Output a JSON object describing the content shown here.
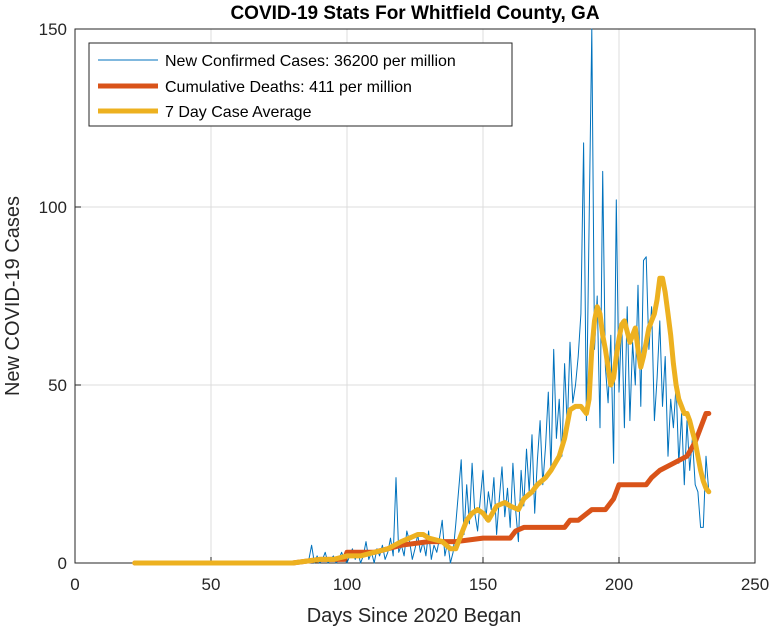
{
  "chart_data": {
    "type": "line",
    "title": "COVID-19 Stats For Whitfield County, GA",
    "xlabel": "Days Since 2020 Began",
    "ylabel": "New COVID-19 Cases",
    "xlim": [
      0,
      250
    ],
    "ylim": [
      0,
      150
    ],
    "xticks": [
      0,
      50,
      100,
      150,
      200,
      250
    ],
    "yticks": [
      0,
      50,
      100,
      150
    ],
    "grid": true,
    "legend_position": "top-left",
    "series": [
      {
        "name": "New Confirmed Cases: 36200 per million",
        "color": "#0072BD",
        "style": "thin",
        "x": [
          22,
          30,
          40,
          50,
          60,
          70,
          80,
          85,
          86,
          87,
          88,
          89,
          90,
          91,
          92,
          93,
          94,
          95,
          96,
          97,
          98,
          99,
          100,
          101,
          102,
          103,
          104,
          105,
          106,
          107,
          108,
          109,
          110,
          111,
          112,
          113,
          114,
          115,
          116,
          117,
          118,
          119,
          120,
          121,
          122,
          123,
          124,
          125,
          126,
          127,
          128,
          129,
          130,
          131,
          132,
          133,
          134,
          135,
          136,
          137,
          138,
          139,
          140,
          141,
          142,
          143,
          144,
          145,
          146,
          147,
          148,
          149,
          150,
          151,
          152,
          153,
          154,
          155,
          156,
          157,
          158,
          159,
          160,
          161,
          162,
          163,
          164,
          165,
          166,
          167,
          168,
          169,
          170,
          171,
          172,
          173,
          174,
          175,
          176,
          177,
          178,
          179,
          180,
          181,
          182,
          183,
          184,
          185,
          186,
          187,
          188,
          189,
          190,
          191,
          192,
          193,
          194,
          195,
          196,
          197,
          198,
          199,
          200,
          201,
          202,
          203,
          204,
          205,
          206,
          207,
          208,
          209,
          210,
          211,
          212,
          213,
          214,
          215,
          216,
          217,
          218,
          219,
          220,
          221,
          222,
          223,
          224,
          225,
          226,
          227,
          228,
          229,
          230,
          231,
          232,
          233
        ],
        "y": [
          0,
          0,
          0,
          0,
          0,
          0,
          0,
          0,
          1,
          5,
          0,
          2,
          0,
          1,
          3,
          0,
          1,
          2,
          0,
          1,
          3,
          1,
          0,
          2,
          4,
          1,
          3,
          0,
          2,
          6,
          1,
          3,
          0,
          4,
          2,
          5,
          1,
          3,
          7,
          2,
          24,
          3,
          5,
          2,
          9,
          6,
          1,
          4,
          8,
          3,
          6,
          2,
          9,
          1,
          5,
          3,
          7,
          12,
          2,
          6,
          0,
          3,
          11,
          20,
          29,
          8,
          22,
          11,
          28,
          14,
          9,
          18,
          26,
          12,
          20,
          15,
          24,
          8,
          18,
          27,
          13,
          21,
          10,
          28,
          15,
          6,
          26,
          16,
          32,
          20,
          36,
          14,
          29,
          40,
          22,
          33,
          48,
          26,
          60,
          35,
          46,
          30,
          56,
          38,
          62,
          45,
          50,
          58,
          70,
          118,
          40,
          95,
          150,
          60,
          75,
          38,
          110,
          55,
          45,
          64,
          28,
          102,
          48,
          68,
          38,
          72,
          40,
          62,
          50,
          78,
          44,
          85,
          86,
          60,
          72,
          40,
          52,
          68,
          44,
          58,
          30,
          46,
          38,
          50,
          28,
          42,
          22,
          40,
          26,
          35,
          22,
          20,
          10,
          10,
          30,
          20
        ]
      },
      {
        "name": "Cumulative Deaths: 411 per million",
        "color": "#D95319",
        "style": "thick",
        "x": [
          22,
          80,
          90,
          95,
          99,
          100,
          110,
          120,
          130,
          140,
          150,
          160,
          162,
          165,
          170,
          180,
          182,
          185,
          190,
          195,
          198,
          200,
          210,
          212,
          215,
          220,
          225,
          228,
          230,
          232,
          233
        ],
        "y": [
          0,
          0,
          1,
          1,
          1,
          3,
          3,
          5,
          6,
          6,
          7,
          7,
          9,
          10,
          10,
          10,
          12,
          12,
          15,
          15,
          18,
          22,
          22,
          24,
          26,
          28,
          30,
          34,
          38,
          42,
          42
        ]
      },
      {
        "name": "7 Day Case Average",
        "color": "#EDB120",
        "style": "thick",
        "x": [
          22,
          40,
          60,
          80,
          90,
          95,
          100,
          105,
          110,
          115,
          120,
          123,
          126,
          128,
          130,
          135,
          138,
          140,
          142,
          144,
          146,
          148,
          150,
          152,
          155,
          158,
          160,
          163,
          165,
          168,
          170,
          173,
          175,
          178,
          180,
          182,
          184,
          186,
          188,
          189,
          190,
          191,
          192,
          193,
          194,
          195,
          196,
          197,
          198,
          199,
          200,
          201,
          202,
          203,
          204,
          205,
          206,
          207,
          208,
          209,
          210,
          211,
          212,
          213,
          214,
          215,
          216,
          217,
          218,
          219,
          220,
          221,
          222,
          223,
          224,
          225,
          226,
          227,
          228,
          229,
          230,
          231,
          232,
          233
        ],
        "y": [
          0,
          0,
          0,
          0,
          1,
          1,
          2,
          2,
          3,
          4,
          6,
          7,
          8,
          8,
          7,
          6,
          4,
          4,
          8,
          12,
          14,
          15,
          14,
          12,
          16,
          17,
          16,
          15,
          18,
          20,
          22,
          24,
          26,
          30,
          35,
          43,
          44,
          44,
          42,
          46,
          60,
          68,
          72,
          70,
          64,
          60,
          55,
          50,
          52,
          58,
          63,
          67,
          68,
          65,
          62,
          64,
          66,
          60,
          55,
          58,
          62,
          66,
          68,
          70,
          74,
          80,
          80,
          76,
          70,
          64,
          56,
          50,
          46,
          44,
          42,
          42,
          40,
          37,
          34,
          30,
          26,
          23,
          21,
          20
        ]
      }
    ]
  }
}
